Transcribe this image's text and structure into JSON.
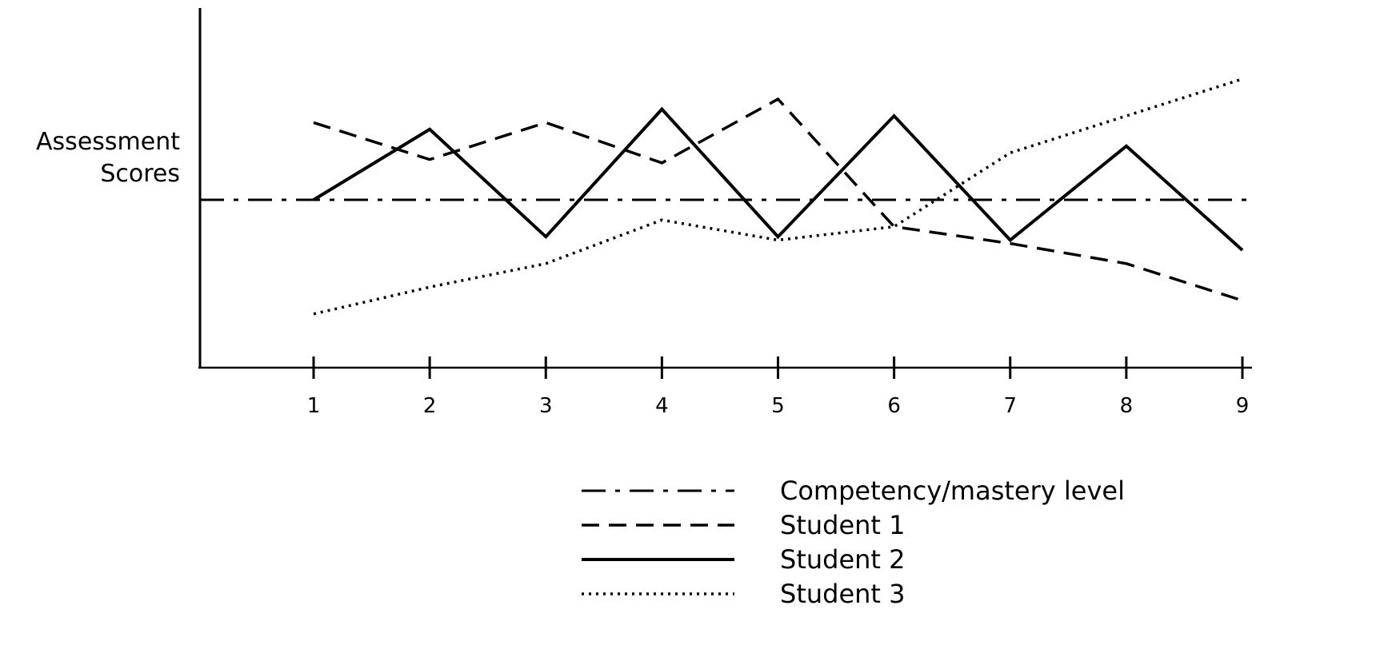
{
  "chart_data": {
    "type": "line",
    "title": "",
    "xlabel": "",
    "ylabel": [
      "Assessment",
      "Scores"
    ],
    "x": [
      1,
      2,
      3,
      4,
      5,
      6,
      7,
      8,
      9
    ],
    "ylim": [
      0,
      10
    ],
    "grid": false,
    "legend_position": "bottom-right",
    "series": [
      {
        "name": "Competency/mastery level",
        "style": "dashdot",
        "values": [
          5,
          5,
          5,
          5,
          5,
          5,
          5,
          5,
          5
        ]
      },
      {
        "name": "Student 1",
        "style": "dashed",
        "values": [
          7.3,
          6.2,
          7.3,
          6.1,
          8.0,
          4.2,
          3.7,
          3.1,
          2.0
        ]
      },
      {
        "name": "Student 2",
        "style": "solid",
        "values": [
          5.0,
          7.1,
          3.9,
          7.7,
          3.9,
          7.5,
          3.8,
          6.6,
          3.5
        ]
      },
      {
        "name": "Student 3",
        "style": "dotted",
        "values": [
          1.6,
          2.4,
          3.1,
          4.4,
          3.8,
          4.2,
          6.4,
          7.5,
          8.6
        ]
      }
    ]
  }
}
